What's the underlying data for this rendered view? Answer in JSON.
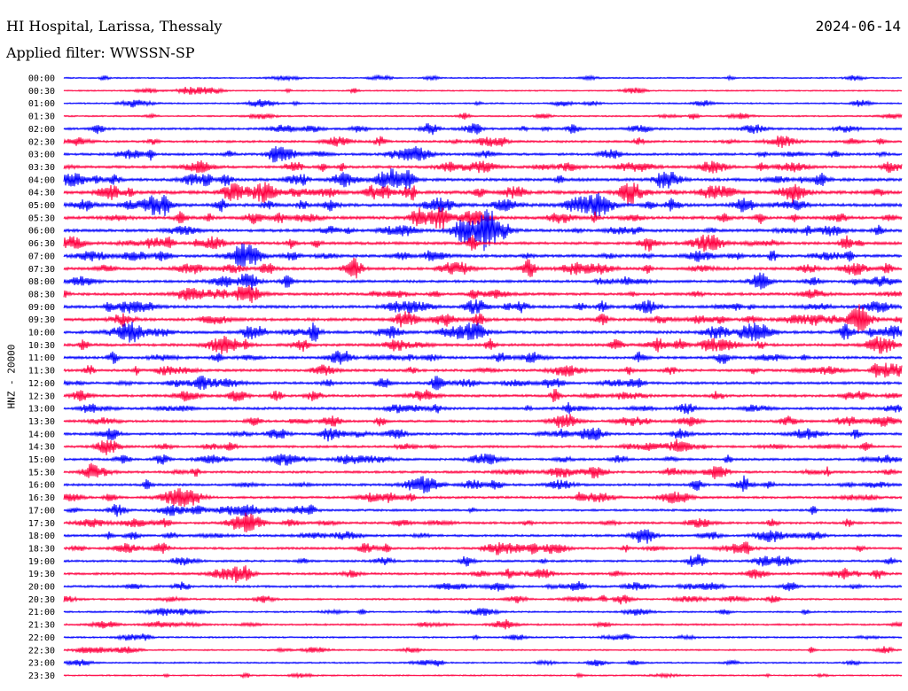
{
  "header": {
    "station": "HI Hospital, Larissa, Thessaly",
    "date": "2024-06-14",
    "filter_text": "Applied filter: WWSSN-SP"
  },
  "chart_data": {
    "type": "line",
    "chart_kind": "helicorder seismogram",
    "title": "HI Hospital, Larissa, Thessaly",
    "date": "2024-06-14",
    "filter": "WWSSN-SP",
    "ylabel": "HNZ - 20000",
    "xlabel": "",
    "grid": false,
    "line_duration_minutes": 30,
    "colors": [
      "#0000ff",
      "#ff0040"
    ],
    "color_pattern": "alternating, starting with blue at 00:00",
    "tick_labels": [
      "00:00",
      "00:30",
      "01:00",
      "01:30",
      "02:00",
      "02:30",
      "03:00",
      "03:30",
      "04:00",
      "04:30",
      "05:00",
      "05:30",
      "06:00",
      "06:30",
      "07:00",
      "07:30",
      "08:00",
      "08:30",
      "09:00",
      "09:30",
      "10:00",
      "10:30",
      "11:00",
      "11:30",
      "12:00",
      "12:30",
      "13:00",
      "13:30",
      "14:00",
      "14:30",
      "15:00",
      "15:30",
      "16:00",
      "16:30",
      "17:00",
      "17:30",
      "18:00",
      "18:30",
      "19:00",
      "19:30",
      "20:00",
      "20:30",
      "21:00",
      "21:30",
      "22:00",
      "22:30",
      "23:00",
      "23:30"
    ],
    "activity_level": [
      0.15,
      0.12,
      0.2,
      0.2,
      0.45,
      0.45,
      0.55,
      0.6,
      0.75,
      0.85,
      0.8,
      0.75,
      0.7,
      0.7,
      0.7,
      0.65,
      0.6,
      0.65,
      0.7,
      0.7,
      0.7,
      0.65,
      0.6,
      0.6,
      0.6,
      0.55,
      0.55,
      0.5,
      0.55,
      0.5,
      0.5,
      0.5,
      0.55,
      0.5,
      0.45,
      0.5,
      0.5,
      0.5,
      0.45,
      0.5,
      0.45,
      0.3,
      0.25,
      0.3,
      0.25,
      0.2,
      0.2,
      0.15
    ]
  }
}
